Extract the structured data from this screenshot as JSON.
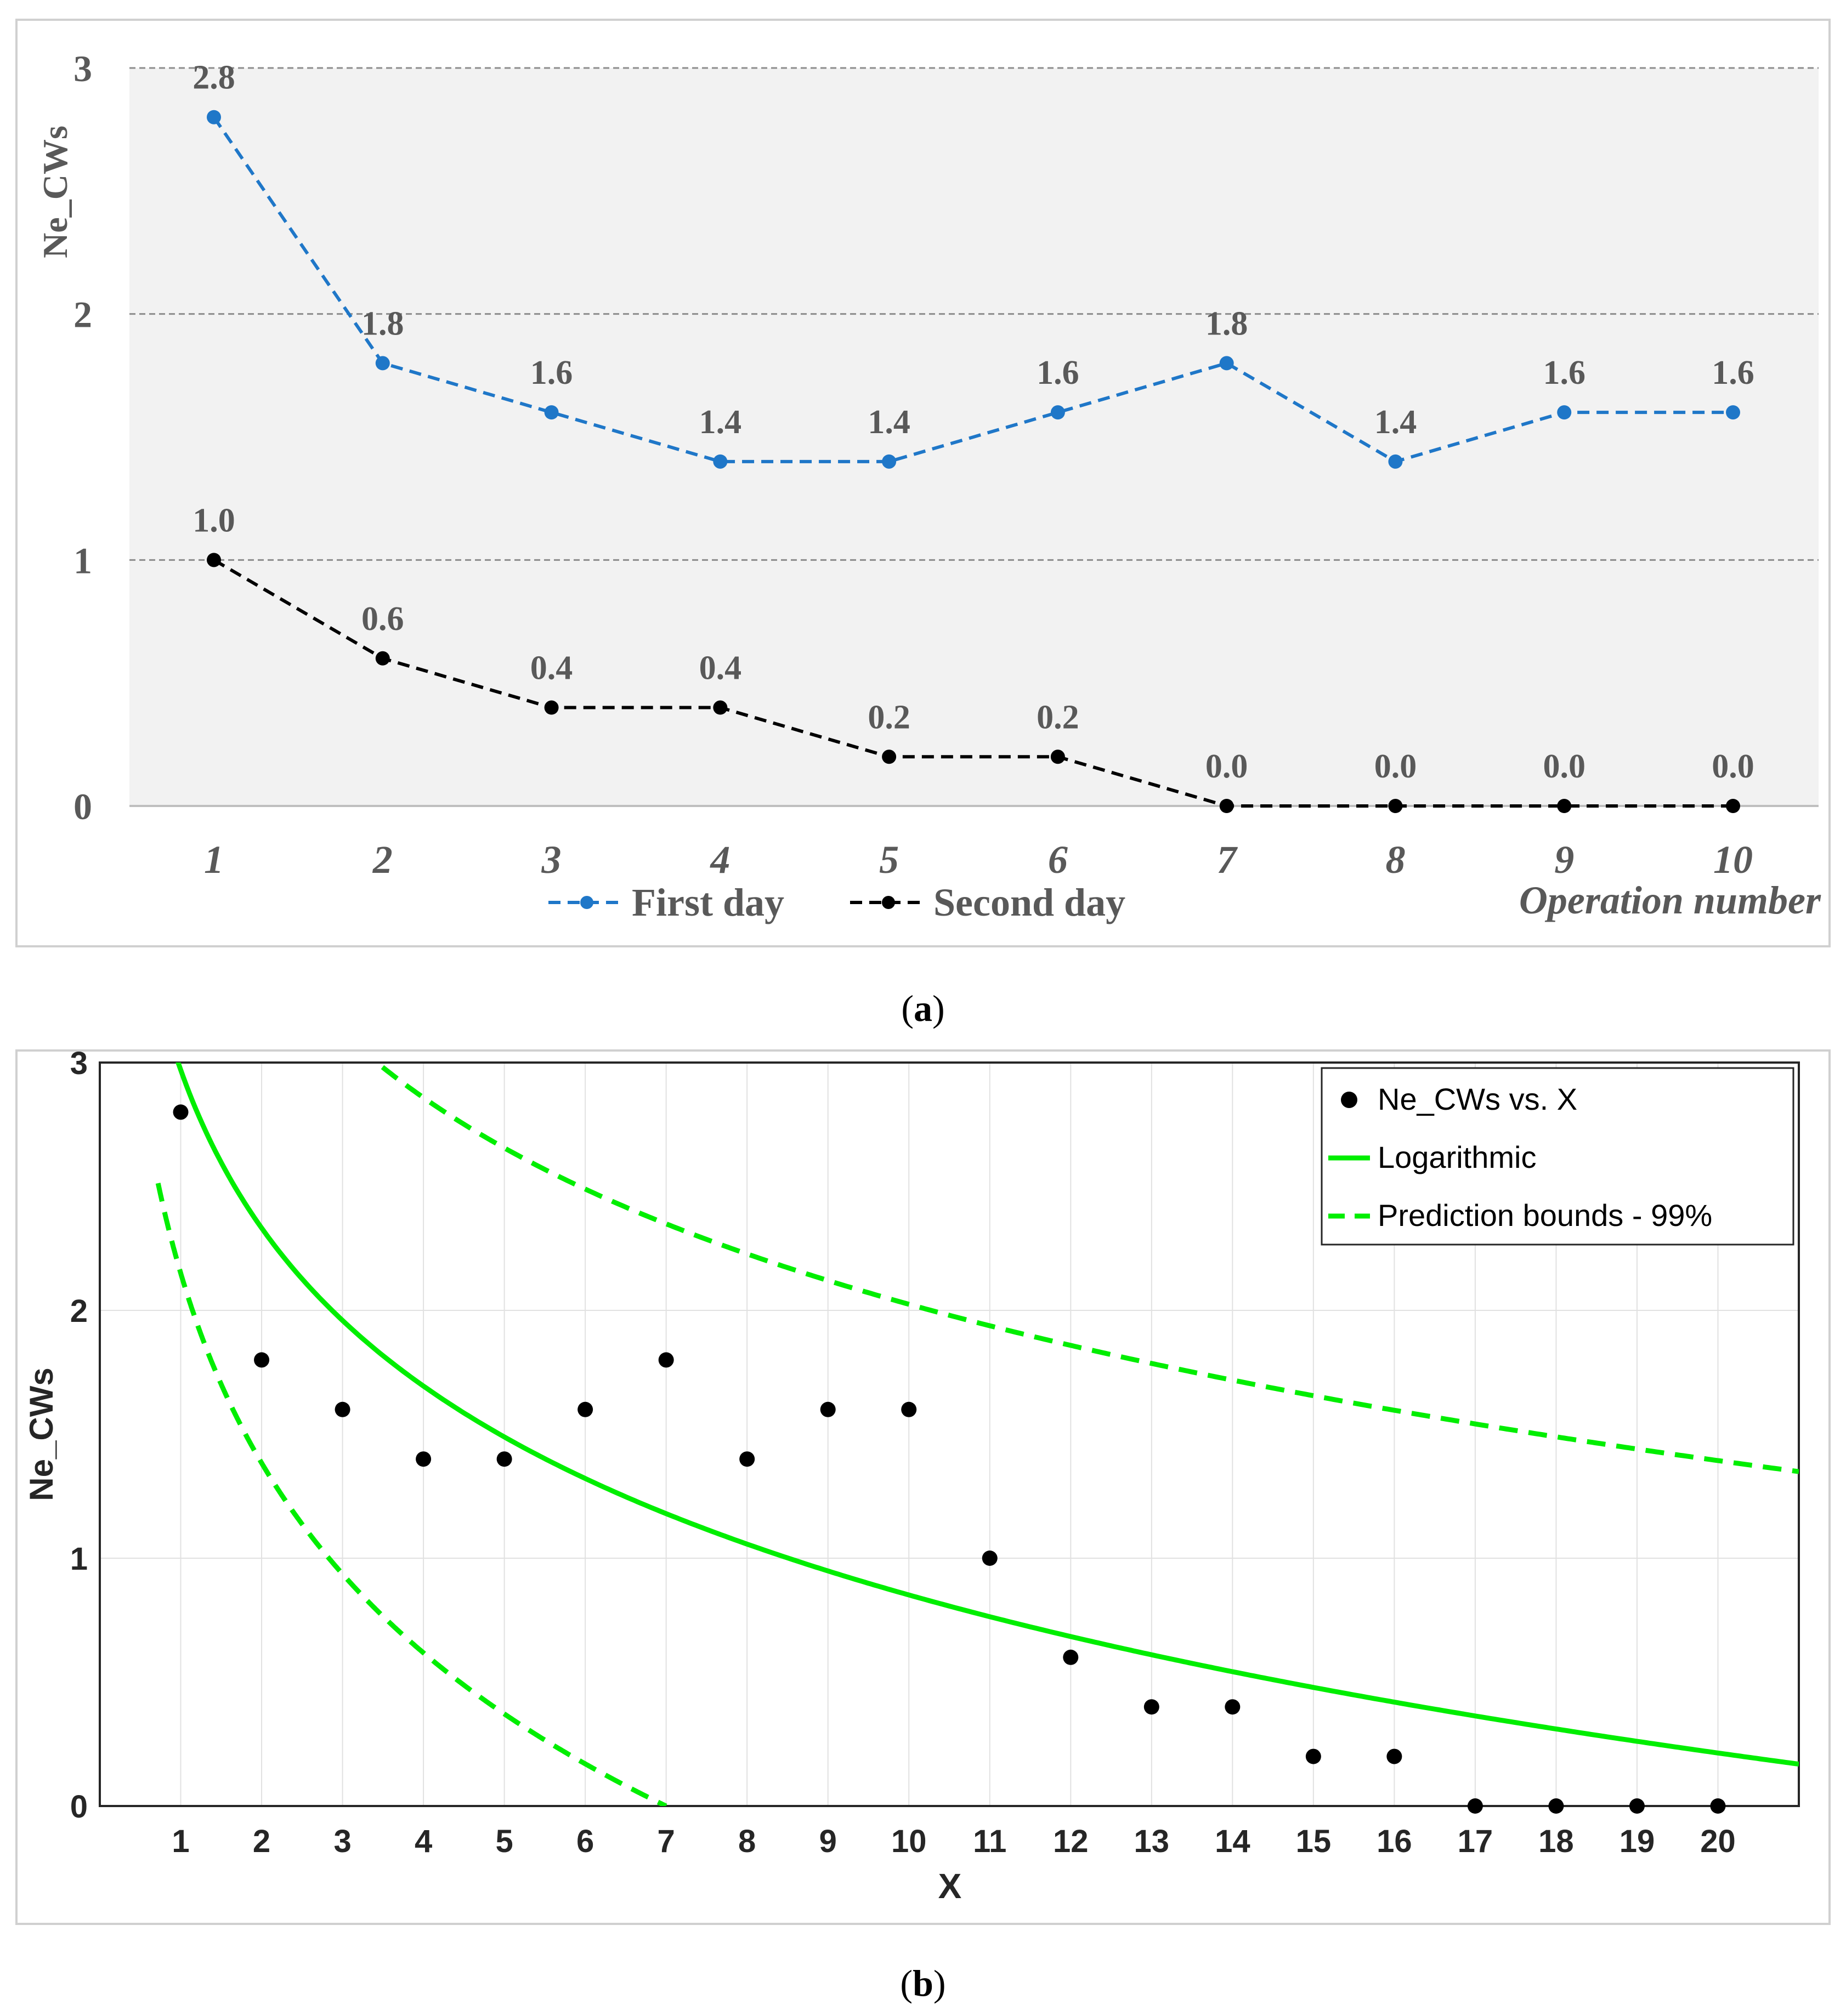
{
  "chart_data": [
    {
      "panel": "a",
      "type": "line",
      "caption_letter": "a",
      "xlabel": "Operation number",
      "ylabel": "Ne_CWs",
      "categories": [
        "1",
        "2",
        "3",
        "4",
        "5",
        "6",
        "7",
        "8",
        "9",
        "10"
      ],
      "ylim": [
        0,
        3
      ],
      "yticks": [
        "0",
        "1",
        "2",
        "3"
      ],
      "grid": "horizontal dashed",
      "legend_position": "bottom-center",
      "series": [
        {
          "name": "First day",
          "color": "#1f77c8",
          "values": [
            2.8,
            1.8,
            1.6,
            1.4,
            1.4,
            1.6,
            1.8,
            1.4,
            1.6,
            1.6
          ],
          "labels": [
            "2.8",
            "1.8",
            "1.6",
            "1.4",
            "1.4",
            "1.6",
            "1.8",
            "1.4",
            "1.6",
            "1.6"
          ]
        },
        {
          "name": "Second day",
          "color": "#000000",
          "values": [
            1.0,
            0.6,
            0.4,
            0.4,
            0.2,
            0.2,
            0.0,
            0.0,
            0.0,
            0.0
          ],
          "labels": [
            "1.0",
            "0.6",
            "0.4",
            "0.4",
            "0.2",
            "0.2",
            "0.0",
            "0.0",
            "0.0",
            "0.0"
          ]
        }
      ]
    },
    {
      "panel": "b",
      "type": "scatter",
      "caption_letter": "b",
      "xlabel": "X",
      "ylabel": "Ne_CWs",
      "xlim": [
        0,
        21
      ],
      "ylim": [
        0,
        3
      ],
      "xticks": [
        "1",
        "2",
        "3",
        "4",
        "5",
        "6",
        "7",
        "8",
        "9",
        "10",
        "11",
        "12",
        "13",
        "14",
        "15",
        "16",
        "17",
        "18",
        "19",
        "20"
      ],
      "yticks": [
        "0",
        "1",
        "2",
        "3"
      ],
      "grid": true,
      "legend_position": "top-right",
      "points": {
        "name": "Ne_CWs vs. X",
        "color": "#000000",
        "x": [
          1,
          2,
          3,
          4,
          5,
          6,
          7,
          8,
          9,
          10,
          11,
          12,
          13,
          14,
          15,
          16,
          17,
          18,
          19,
          20
        ],
        "y": [
          2.8,
          1.8,
          1.6,
          1.4,
          1.4,
          1.6,
          1.8,
          1.4,
          1.6,
          1.6,
          1.0,
          0.6,
          0.4,
          0.4,
          0.2,
          0.2,
          0.0,
          0.0,
          0.0,
          0.0
        ]
      },
      "fit": {
        "name": "Logarithmic",
        "color": "#00ee00",
        "model": "y = a + b*ln(x)",
        "a": 2.97,
        "b": -0.92
      },
      "bounds": {
        "name": "Prediction bounds - 99%",
        "color": "#00ee00",
        "upper": {
          "a": 4.12,
          "b": -0.91
        },
        "lower": {
          "a": 2.15,
          "b": -1.105
        }
      }
    }
  ]
}
